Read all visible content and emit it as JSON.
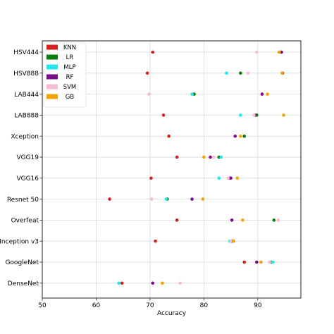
{
  "chart_data": {
    "type": "scatter",
    "xlabel": "Accuracy",
    "ylabel": "",
    "title": "",
    "xlim": [
      50,
      98
    ],
    "xticks": [
      50,
      60,
      70,
      80,
      90
    ],
    "grid": true,
    "legend_position": "top-left",
    "categories": [
      "HSV444",
      "HSV888",
      "LAB444",
      "LAB888",
      "Xception",
      "VGG19",
      "VGG16",
      "Resnet 50",
      "Overfeat",
      "Inception v3",
      "GoogleNet",
      "DenseNet"
    ],
    "series": [
      {
        "name": "KNN",
        "color": "#d62020",
        "values": [
          70.5,
          69.5,
          null,
          72.5,
          73.5,
          75.0,
          70.2,
          62.5,
          75.0,
          71.0,
          87.5,
          64.8
        ]
      },
      {
        "name": "LR",
        "color": "#0a7d0a",
        "values": [
          94.0,
          86.8,
          78.2,
          89.8,
          87.5,
          82.8,
          84.8,
          73.2,
          93.0,
          85.5,
          92.5,
          null
        ]
      },
      {
        "name": "MLP",
        "color": "#22e6f0",
        "values": [
          null,
          84.2,
          77.8,
          86.8,
          null,
          83.2,
          82.8,
          73.0,
          null,
          84.8,
          92.8,
          64.2
        ]
      },
      {
        "name": "RF",
        "color": "#7b0a8a",
        "values": [
          94.4,
          94.6,
          90.8,
          89.5,
          85.8,
          81.2,
          85.0,
          77.8,
          85.2,
          85.2,
          89.8,
          70.5
        ]
      },
      {
        "name": "SVM",
        "color": "#f7bcd0",
        "values": [
          89.8,
          88.2,
          69.8,
          89.3,
          null,
          81.8,
          84.5,
          70.3,
          93.8,
          85.0,
          92.2,
          75.6
        ]
      },
      {
        "name": "GB",
        "color": "#f0a500",
        "values": [
          94.0,
          94.5,
          91.8,
          94.8,
          86.8,
          80.0,
          86.2,
          79.8,
          87.2,
          85.5,
          90.6,
          72.3
        ]
      }
    ]
  }
}
